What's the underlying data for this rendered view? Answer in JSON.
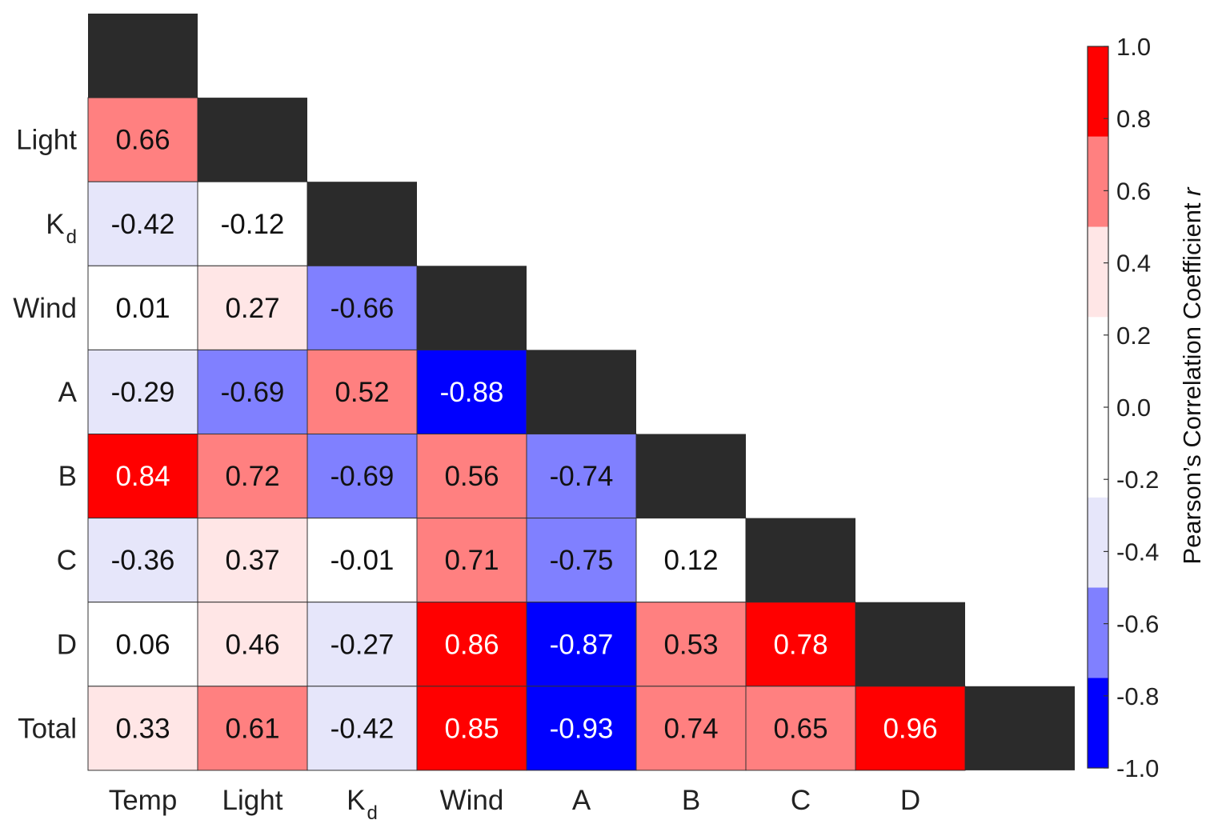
{
  "chart_data": {
    "type": "heatmap",
    "row_labels": [
      {
        "base": ""
      },
      {
        "base": "Light"
      },
      {
        "base": "K",
        "sub": "d"
      },
      {
        "base": "Wind"
      },
      {
        "base": "A"
      },
      {
        "base": "B"
      },
      {
        "base": "C"
      },
      {
        "base": "D"
      },
      {
        "base": "Total"
      }
    ],
    "col_labels": [
      {
        "base": "Temp"
      },
      {
        "base": "Light"
      },
      {
        "base": "K",
        "sub": "d"
      },
      {
        "base": "Wind"
      },
      {
        "base": "A"
      },
      {
        "base": "B"
      },
      {
        "base": "C"
      },
      {
        "base": "D"
      },
      {
        "base": ""
      }
    ],
    "values": [
      [],
      [
        0.66
      ],
      [
        -0.42,
        -0.12
      ],
      [
        0.01,
        0.27,
        -0.66
      ],
      [
        -0.29,
        -0.69,
        0.52,
        -0.88
      ],
      [
        0.84,
        0.72,
        -0.69,
        0.56,
        -0.74
      ],
      [
        -0.36,
        0.37,
        -0.01,
        0.71,
        -0.75,
        0.12
      ],
      [
        0.06,
        0.46,
        -0.27,
        0.86,
        -0.87,
        0.53,
        0.78
      ],
      [
        0.33,
        0.61,
        -0.42,
        0.85,
        -0.93,
        0.74,
        0.65,
        0.96
      ]
    ],
    "value_labels": [
      [],
      [
        "0.66"
      ],
      [
        "-0.42",
        "-0.12"
      ],
      [
        "0.01",
        "0.27",
        "-0.66"
      ],
      [
        "-0.29",
        "-0.69",
        "0.52",
        "-0.88"
      ],
      [
        "0.84",
        "0.72",
        "-0.69",
        "0.56",
        "-0.74"
      ],
      [
        "-0.36",
        "0.37",
        "-0.01",
        "0.71",
        "-0.75",
        "0.12"
      ],
      [
        "0.06",
        "0.46",
        "-0.27",
        "0.86",
        "-0.87",
        "0.53",
        "0.78"
      ],
      [
        "0.33",
        "0.61",
        "-0.42",
        "0.85",
        "-0.93",
        "0.74",
        "0.65",
        "0.96"
      ]
    ],
    "diagonal_color": "#2b2b2b",
    "colorbar": {
      "range": [
        -1.0,
        1.0
      ],
      "ticks": [
        "1.0",
        "0.8",
        "0.6",
        "0.4",
        "0.2",
        "0.0",
        "-0.2",
        "-0.4",
        "-0.6",
        "-0.8",
        "-1.0"
      ],
      "title": "Pearson’s Correlation Coefficient",
      "title_italic_symbol": "r",
      "bins": [
        {
          "from": -1.0,
          "to": -0.75,
          "color": "#0000ff",
          "text": "#ffffff"
        },
        {
          "from": -0.75,
          "to": -0.5,
          "color": "#8080ff",
          "text": "#111111"
        },
        {
          "from": -0.5,
          "to": -0.25,
          "color": "#e6e6fa",
          "text": "#111111"
        },
        {
          "from": -0.25,
          "to": 0.25,
          "color": "#ffffff",
          "text": "#111111"
        },
        {
          "from": 0.25,
          "to": 0.5,
          "color": "#ffe6e6",
          "text": "#111111"
        },
        {
          "from": 0.5,
          "to": 0.75,
          "color": "#ff8080",
          "text": "#111111"
        },
        {
          "from": 0.75,
          "to": 1.0,
          "color": "#ff0000",
          "text": "#ffffff"
        }
      ]
    }
  }
}
